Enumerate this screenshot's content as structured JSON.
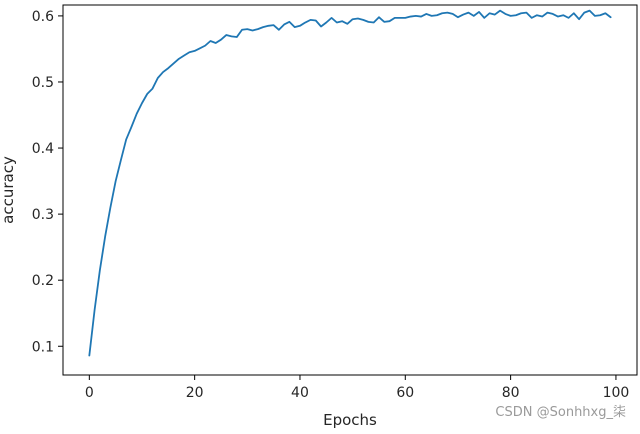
{
  "chart_data": {
    "type": "line",
    "title": "",
    "xlabel": "Epochs",
    "ylabel": "accuracy",
    "xlim": [
      -5,
      104
    ],
    "ylim": [
      0.0565,
      0.6165
    ],
    "xticks": [
      0,
      20,
      40,
      60,
      80,
      100
    ],
    "yticks": [
      0.1,
      0.2,
      0.3,
      0.4,
      0.5,
      0.6
    ],
    "xtick_labels": [
      "0",
      "20",
      "40",
      "60",
      "80",
      "100"
    ],
    "ytick_labels": [
      "0.1",
      "0.2",
      "0.3",
      "0.4",
      "0.5",
      "0.6"
    ],
    "grid": false,
    "legend": "none",
    "series": [
      {
        "color": "#1f77b4",
        "x": [
          0,
          1,
          2,
          3,
          4,
          5,
          6,
          7,
          8,
          9,
          10,
          11,
          12,
          13,
          14,
          15,
          16,
          17,
          18,
          19,
          20,
          21,
          22,
          23,
          24,
          25,
          26,
          27,
          28,
          29,
          30,
          31,
          32,
          33,
          34,
          35,
          36,
          37,
          38,
          39,
          40,
          41,
          42,
          43,
          44,
          45,
          46,
          47,
          48,
          49,
          50,
          51,
          52,
          53,
          54,
          55,
          56,
          57,
          58,
          59,
          60,
          61,
          62,
          63,
          64,
          65,
          66,
          67,
          68,
          69,
          70,
          71,
          72,
          73,
          74,
          75,
          76,
          77,
          78,
          79,
          80,
          81,
          82,
          83,
          84,
          85,
          86,
          87,
          88,
          89,
          90,
          91,
          92,
          93,
          94,
          95,
          96,
          97,
          98,
          99
        ],
        "values": [
          0.086,
          0.155,
          0.215,
          0.266,
          0.31,
          0.35,
          0.382,
          0.413,
          0.432,
          0.452,
          0.468,
          0.482,
          0.49,
          0.506,
          0.515,
          0.521,
          0.528,
          0.535,
          0.54,
          0.545,
          0.547,
          0.551,
          0.555,
          0.562,
          0.559,
          0.564,
          0.571,
          0.569,
          0.568,
          0.579,
          0.58,
          0.578,
          0.58,
          0.583,
          0.585,
          0.586,
          0.579,
          0.587,
          0.591,
          0.583,
          0.585,
          0.59,
          0.594,
          0.593,
          0.584,
          0.59,
          0.597,
          0.59,
          0.592,
          0.588,
          0.595,
          0.596,
          0.594,
          0.591,
          0.59,
          0.598,
          0.591,
          0.592,
          0.597,
          0.597,
          0.597,
          0.599,
          0.6,
          0.599,
          0.603,
          0.6,
          0.601,
          0.604,
          0.605,
          0.603,
          0.598,
          0.602,
          0.605,
          0.6,
          0.606,
          0.597,
          0.604,
          0.602,
          0.608,
          0.603,
          0.6,
          0.601,
          0.604,
          0.605,
          0.597,
          0.601,
          0.599,
          0.605,
          0.603,
          0.599,
          0.601,
          0.597,
          0.604,
          0.595,
          0.605,
          0.608,
          0.6,
          0.601,
          0.604,
          0.598
        ]
      }
    ]
  },
  "watermark": {
    "text": "CSDN @Sonhhxg_柒"
  }
}
